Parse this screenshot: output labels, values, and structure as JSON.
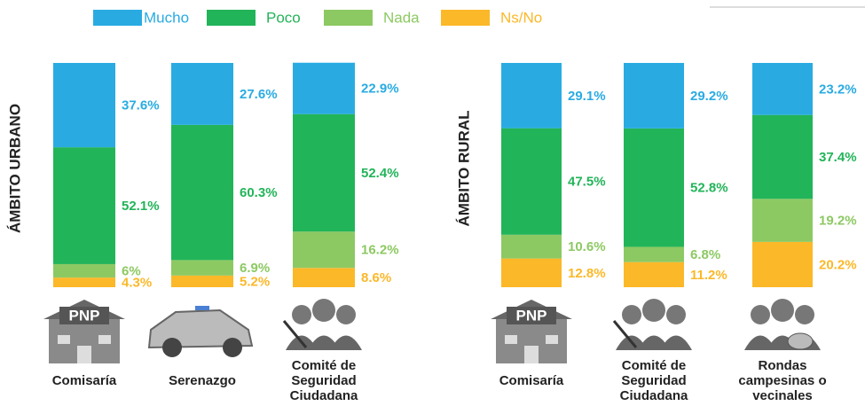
{
  "chart_data": [
    {
      "type": "bar",
      "stacked": true,
      "side_label": "ÁMBITO URBANO",
      "sign": "PNP",
      "categories": [
        "Comisaría",
        "Serenazgo",
        "Comité de Seguridad Ciudadana"
      ],
      "ylim": [
        0,
        100
      ],
      "series": [
        {
          "name": "Mucho",
          "color": "#29abe2",
          "values": [
            37.6,
            27.6,
            22.9
          ],
          "value_labels": [
            "37.6%",
            "27.6%",
            "22.9%"
          ]
        },
        {
          "name": "Poco",
          "color": "#22b459",
          "values": [
            52.1,
            60.3,
            52.4
          ],
          "value_labels": [
            "52.1%",
            "60.3%",
            "52.4%"
          ]
        },
        {
          "name": "Nada",
          "color": "#8dc963",
          "values": [
            6,
            6.9,
            16.2
          ],
          "value_labels": [
            "6%",
            "6.9%",
            "16.2%"
          ]
        },
        {
          "name": "Ns/No",
          "color": "#fbb829",
          "values": [
            4.3,
            5.2,
            8.6
          ],
          "value_labels": [
            "4.3%",
            "5.2%",
            "8.6%"
          ]
        }
      ]
    },
    {
      "type": "bar",
      "stacked": true,
      "side_label": "ÁMBITO RURAL",
      "sign": "PNP",
      "categories": [
        "Comisaría",
        "Comité de Seguridad Ciudadana",
        "Rondas campesinas o vecinales"
      ],
      "ylim": [
        0,
        100
      ],
      "series": [
        {
          "name": "Mucho",
          "color": "#29abe2",
          "values": [
            29.1,
            29.2,
            23.2
          ],
          "value_labels": [
            "29.1%",
            "29.2%",
            "23.2%"
          ]
        },
        {
          "name": "Poco",
          "color": "#22b459",
          "values": [
            47.5,
            52.8,
            37.4
          ],
          "value_labels": [
            "47.5%",
            "52.8%",
            "37.4%"
          ]
        },
        {
          "name": "Nada",
          "color": "#8dc963",
          "values": [
            10.6,
            6.8,
            19.2
          ],
          "value_labels": [
            "10.6%",
            "6.8%",
            "19.2%"
          ]
        },
        {
          "name": "Ns/No",
          "color": "#fbb829",
          "values": [
            12.8,
            11.2,
            20.2
          ],
          "value_labels": [
            "12.8%",
            "11.2%",
            "20.2%"
          ]
        }
      ]
    }
  ]
}
